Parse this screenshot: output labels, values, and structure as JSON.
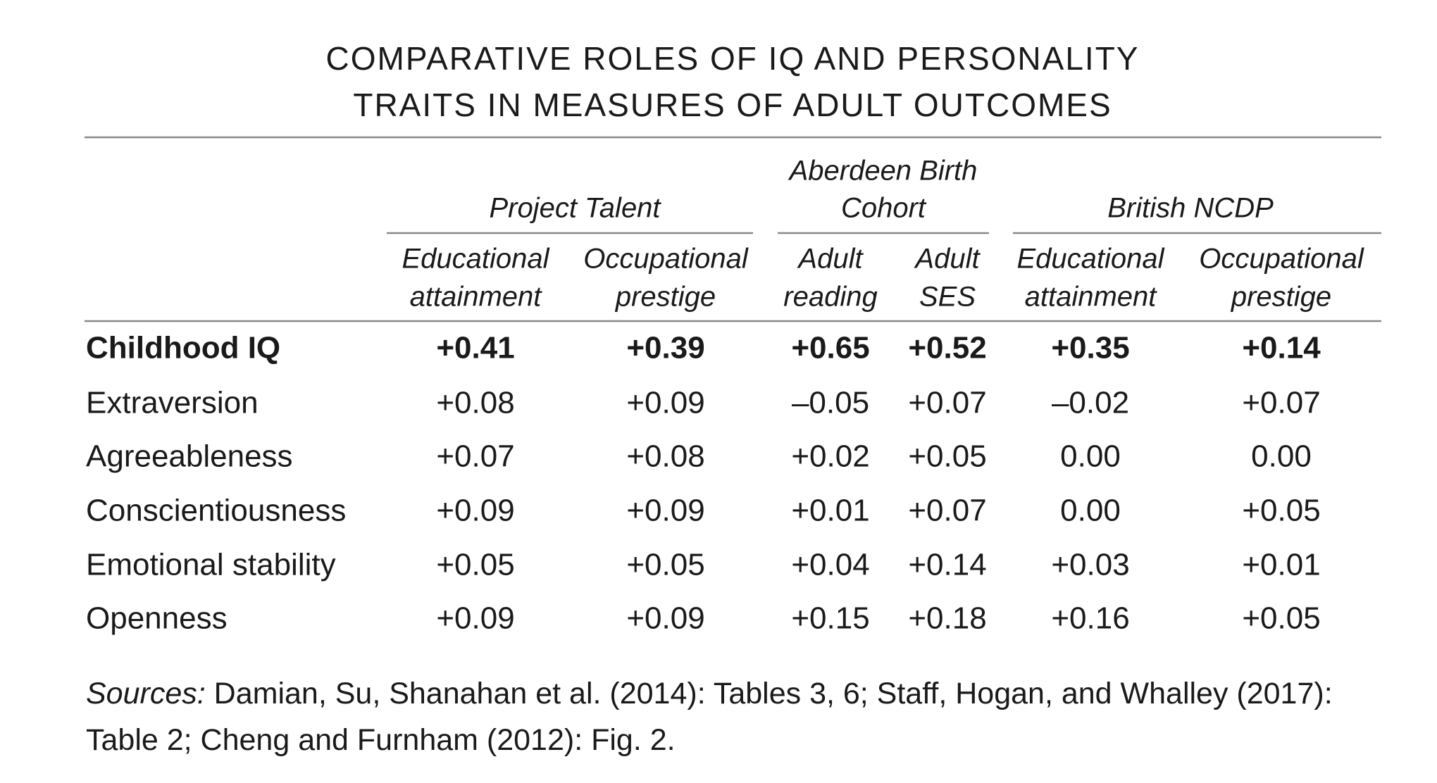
{
  "title": [
    "COMPARATIVE ROLES OF IQ AND PERSONALITY",
    "TRAITS IN MEASURES OF ADULT OUTCOMES"
  ],
  "table": {
    "groups": [
      {
        "label": [
          "Project Talent"
        ]
      },
      {
        "label": [
          "Aberdeen Birth",
          "Cohort"
        ]
      },
      {
        "label": [
          "British NCDP"
        ]
      }
    ],
    "columns": [
      [
        "Educational",
        "attainment"
      ],
      [
        "Occupational",
        "prestige"
      ],
      [
        "Adult",
        "reading"
      ],
      [
        "Adult",
        "SES"
      ],
      [
        "Educational",
        "attainment"
      ],
      [
        "Occupational",
        "prestige"
      ]
    ],
    "rows": [
      {
        "label": "Childhood IQ",
        "values": [
          "+0.41",
          "+0.39",
          "+0.65",
          "+0.52",
          "+0.35",
          "+0.14"
        ]
      },
      {
        "label": "Extraversion",
        "values": [
          "+0.08",
          "+0.09",
          "–0.05",
          "+0.07",
          "–0.02",
          "+0.07"
        ]
      },
      {
        "label": "Agreeableness",
        "values": [
          "+0.07",
          "+0.08",
          "+0.02",
          "+0.05",
          "0.00",
          "0.00"
        ]
      },
      {
        "label": "Conscientiousness",
        "values": [
          "+0.09",
          "+0.09",
          "+0.01",
          "+0.07",
          "0.00",
          "+0.05"
        ]
      },
      {
        "label": "Emotional stability",
        "values": [
          "+0.05",
          "+0.05",
          "+0.04",
          "+0.14",
          "+0.03",
          "+0.01"
        ]
      },
      {
        "label": "Openness",
        "values": [
          "+0.09",
          "+0.09",
          "+0.15",
          "+0.18",
          "+0.16",
          "+0.05"
        ]
      }
    ]
  },
  "sources": {
    "label": "Sources:",
    "text": "Damian, Su, Shanahan et al. (2014): Tables 3, 6; Staff, Hogan, and Whalley (2017): Table 2; Cheng and Furnham (2012): Fig. 2."
  }
}
